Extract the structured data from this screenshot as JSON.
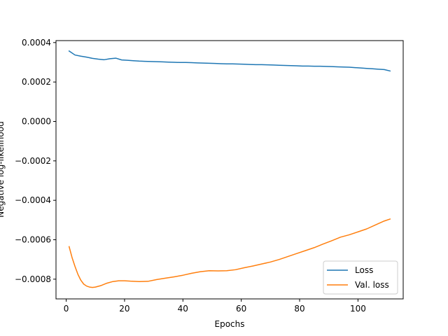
{
  "chart_data": {
    "type": "line",
    "title": "",
    "xlabel": "Epochs",
    "ylabel": "Negative log-likelihood",
    "xlim": [
      -3.5,
      115.5
    ],
    "ylim": [
      -0.0009,
      0.00041
    ],
    "xticks": [
      0,
      20,
      40,
      60,
      80,
      100
    ],
    "xtick_labels": [
      "0",
      "20",
      "40",
      "60",
      "80",
      "100"
    ],
    "yticks": [
      -0.0008,
      -0.0006,
      -0.0004,
      -0.0002,
      0.0,
      0.0002,
      0.0004
    ],
    "ytick_labels": [
      "−0.0008",
      "−0.0006",
      "−0.0004",
      "−0.0002",
      "0.0000",
      "0.0002",
      "0.0004"
    ],
    "legend_position": "lower right",
    "grid": false,
    "series": [
      {
        "name": "Loss",
        "color": "#1f77b4",
        "x": [
          1,
          3,
          5,
          7,
          9,
          11,
          13,
          15,
          17,
          19,
          21,
          23,
          25,
          27,
          29,
          31,
          33,
          35,
          37,
          39,
          41,
          43,
          45,
          47,
          49,
          51,
          53,
          55,
          57,
          59,
          61,
          63,
          65,
          67,
          69,
          71,
          73,
          75,
          77,
          79,
          81,
          83,
          85,
          87,
          89,
          91,
          93,
          95,
          97,
          99,
          101,
          103,
          105,
          107,
          109,
          111
        ],
        "y": [
          0.000357,
          0.000337,
          0.000331,
          0.000326,
          0.00032,
          0.000316,
          0.000313,
          0.000318,
          0.000321,
          0.000312,
          0.00031,
          0.000308,
          0.000306,
          0.000305,
          0.000304,
          0.000303,
          0.000302,
          0.000301,
          0.0003,
          0.000299,
          0.000299,
          0.000298,
          0.000297,
          0.000296,
          0.000295,
          0.000294,
          0.000293,
          0.000292,
          0.000292,
          0.000291,
          0.00029,
          0.000289,
          0.000288,
          0.000288,
          0.000287,
          0.000286,
          0.000285,
          0.000284,
          0.000283,
          0.000282,
          0.000281,
          0.000281,
          0.00028,
          0.00028,
          0.000279,
          0.000278,
          0.000277,
          0.000276,
          0.000275,
          0.000273,
          0.000271,
          0.000269,
          0.000267,
          0.000265,
          0.000263,
          0.000256
        ]
      },
      {
        "name": "Val. loss",
        "color": "#ff7f0e",
        "x": [
          1,
          2,
          3,
          4,
          5,
          6,
          7,
          8,
          9,
          10,
          12,
          14,
          16,
          18,
          20,
          22,
          25,
          28,
          31,
          34,
          37,
          40,
          43,
          46,
          49,
          52,
          55,
          58,
          61,
          64,
          67,
          70,
          73,
          76,
          79,
          82,
          85,
          88,
          91,
          94,
          97,
          100,
          103,
          106,
          109,
          111
        ],
        "y": [
          -0.000635,
          -0.00069,
          -0.000735,
          -0.000775,
          -0.000805,
          -0.000825,
          -0.000835,
          -0.00084,
          -0.000842,
          -0.00084,
          -0.000832,
          -0.00082,
          -0.000812,
          -0.000808,
          -0.000808,
          -0.00081,
          -0.000812,
          -0.000811,
          -0.000802,
          -0.000795,
          -0.000788,
          -0.00078,
          -0.00077,
          -0.000762,
          -0.000757,
          -0.000758,
          -0.000757,
          -0.000752,
          -0.000742,
          -0.000733,
          -0.000723,
          -0.000713,
          -0.0007,
          -0.000685,
          -0.00067,
          -0.000655,
          -0.00064,
          -0.000622,
          -0.000605,
          -0.000587,
          -0.000575,
          -0.00056,
          -0.000545,
          -0.000525,
          -0.000505,
          -0.000495
        ]
      }
    ]
  }
}
